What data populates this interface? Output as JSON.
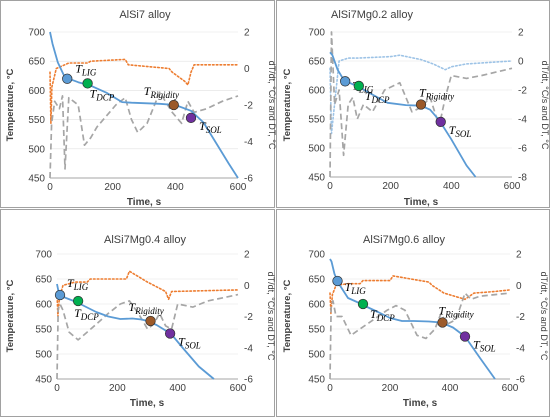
{
  "chart_data": [
    {
      "type": "line",
      "title": "AlSi7 alloy",
      "xlabel": "Time, s",
      "ylabel": "Temperature, °C",
      "ylabel2": "dT/dt, °C/s and DT, °C",
      "xlim": [
        0,
        600
      ],
      "ylim": [
        450,
        700
      ],
      "y2lim": [
        -6,
        2
      ],
      "xticks": [
        0,
        200,
        400,
        600
      ],
      "yticks": [
        450,
        500,
        550,
        600,
        650,
        700
      ],
      "y2ticks": [
        -6,
        -4,
        -2,
        0,
        2
      ],
      "grid": false,
      "series": [
        {
          "role": "temperature",
          "axis": "left",
          "color": "#5b9bd5",
          "style": "solid",
          "x": [
            0,
            8,
            25,
            45,
            60,
            90,
            130,
            180,
            230,
            260,
            300,
            350,
            400,
            450,
            490,
            530,
            570,
            600
          ],
          "y": [
            700,
            680,
            648,
            625,
            620,
            614,
            608,
            596,
            580,
            579,
            578,
            577,
            575,
            565,
            545,
            510,
            475,
            450
          ]
        },
        {
          "role": "dT/dt",
          "axis": "right",
          "color": "#ed7d31",
          "style": "dotted",
          "x": [
            0,
            3,
            6,
            20,
            60,
            120,
            130,
            240,
            250,
            380,
            390,
            430,
            440,
            450,
            460,
            600
          ],
          "y": [
            -0.2,
            -3.0,
            -1.0,
            0.0,
            0.3,
            0.3,
            0.4,
            0.5,
            0.2,
            0.0,
            -0.2,
            -0.7,
            -0.9,
            -0.2,
            0.2,
            0.2
          ]
        },
        {
          "role": "DT",
          "axis": "right",
          "color": "#a6a6a6",
          "style": "dashed",
          "x": [
            0,
            5,
            15,
            30,
            40,
            48,
            60,
            75,
            90,
            110,
            130,
            150,
            180,
            210,
            240,
            260,
            280,
            310,
            350,
            390,
            420,
            440,
            460,
            500,
            550,
            600
          ],
          "y": [
            -6.0,
            -3.0,
            -1.8,
            -2.2,
            -1.5,
            -5.5,
            -1.6,
            -1.8,
            -2.0,
            -4.2,
            -3.8,
            -3.2,
            -2.6,
            -2.0,
            -1.6,
            -2.8,
            -3.5,
            -3.0,
            -1.3,
            -2.4,
            -3.0,
            -1.8,
            -2.4,
            -2.2,
            -1.8,
            -1.5
          ]
        }
      ],
      "markers": [
        {
          "label": "T",
          "sub": "LIG",
          "x": 55,
          "y": 620,
          "color": "#5b9bd5"
        },
        {
          "label": "T",
          "sub": "DCP",
          "x": 120,
          "y": 612,
          "color": "#00b050"
        },
        {
          "label": "T",
          "sub": "Rigidity",
          "x": 395,
          "y": 575,
          "color": "#9c5a2a"
        },
        {
          "label": "T",
          "sub": "SOL",
          "x": 450,
          "y": 553,
          "color": "#7030a0"
        }
      ]
    },
    {
      "type": "line",
      "title": "AlSi7Mg0.2 alloy",
      "xlabel": "Time, s",
      "ylabel": "Temperature, °C",
      "ylabel2": "dT/dt, °C/s and DT, °C",
      "xlim": [
        0,
        600
      ],
      "ylim": [
        450,
        700
      ],
      "y2lim": [
        -8,
        2
      ],
      "xticks": [
        0,
        200,
        400,
        600
      ],
      "yticks": [
        450,
        500,
        550,
        600,
        650,
        700
      ],
      "y2ticks": [
        -8,
        -6,
        -4,
        -2,
        0,
        2
      ],
      "grid": false,
      "series": [
        {
          "role": "temperature",
          "axis": "left",
          "color": "#5b9bd5",
          "style": "solid",
          "x": [
            0,
            8,
            25,
            45,
            70,
            100,
            140,
            190,
            250,
            300,
            330,
            360,
            400,
            450,
            480
          ],
          "y": [
            665,
            660,
            635,
            618,
            611,
            604,
            592,
            578,
            574,
            573,
            566,
            548,
            515,
            470,
            450
          ]
        },
        {
          "role": "dT/dt",
          "axis": "right",
          "color": "#9dc3e6",
          "style": "dotted",
          "x": [
            0,
            5,
            30,
            60,
            90,
            200,
            230,
            300,
            340,
            380,
            400,
            450,
            600
          ],
          "y": [
            -0.5,
            -5.0,
            0.0,
            0.2,
            0.2,
            0.3,
            0.4,
            0.1,
            -0.2,
            -0.6,
            -0.4,
            -0.2,
            0.0
          ]
        },
        {
          "role": "DT",
          "axis": "right",
          "color": "#a6a6a6",
          "style": "dashed",
          "x": [
            0,
            5,
            15,
            30,
            45,
            60,
            75,
            90,
            110,
            140,
            180,
            230,
            270,
            300,
            330,
            360,
            380,
            400,
            450,
            500,
            600
          ],
          "y": [
            -8.0,
            2.0,
            -3.0,
            -2.0,
            -6.5,
            -3.0,
            -2.5,
            -4.0,
            -3.0,
            -3.5,
            -2.0,
            -1.5,
            -3.5,
            -3.2,
            -2.5,
            -4.5,
            -2.5,
            -1.0,
            -1.2,
            -1.0,
            -0.5
          ]
        }
      ],
      "markers": [
        {
          "label": "T",
          "sub": "LIG",
          "x": 50,
          "y": 615,
          "color": "#5b9bd5"
        },
        {
          "label": "T",
          "sub": "DCP",
          "x": 95,
          "y": 607,
          "color": "#00b050"
        },
        {
          "label": "T",
          "sub": "Rigidity",
          "x": 300,
          "y": 575,
          "color": "#9c5a2a"
        },
        {
          "label": "T",
          "sub": "SOL",
          "x": 365,
          "y": 545,
          "color": "#7030a0"
        }
      ]
    },
    {
      "type": "line",
      "title": "AlSi7Mg0.4 alloy",
      "xlabel": "Time, s",
      "ylabel": "Temperature, °C",
      "ylabel2": "dT/dt, °C/s and DT, °C",
      "xlim": [
        0,
        600
      ],
      "ylim": [
        450,
        700
      ],
      "y2lim": [
        -6,
        2
      ],
      "xticks": [
        0,
        200,
        400,
        600
      ],
      "yticks": [
        450,
        500,
        550,
        600,
        650,
        700
      ],
      "y2ticks": [
        -6,
        -4,
        -2,
        0,
        2
      ],
      "grid": false,
      "series": [
        {
          "role": "temperature",
          "axis": "left",
          "color": "#5b9bd5",
          "style": "solid",
          "x": [
            0,
            5,
            10,
            30,
            60,
            90,
            130,
            170,
            210,
            250,
            280,
            300,
            330,
            360,
            380,
            420,
            470,
            520
          ],
          "y": [
            640,
            625,
            617,
            612,
            605,
            596,
            584,
            575,
            570,
            571,
            569,
            566,
            558,
            547,
            539,
            510,
            475,
            450
          ]
        },
        {
          "role": "dT/dt",
          "axis": "right",
          "color": "#ed7d31",
          "style": "dotted",
          "x": [
            0,
            3,
            8,
            20,
            60,
            100,
            110,
            230,
            240,
            300,
            330,
            360,
            370,
            380,
            600
          ],
          "y": [
            -0.5,
            -2.0,
            -0.8,
            0.0,
            0.2,
            0.2,
            0.4,
            0.4,
            0.9,
            0.2,
            -0.1,
            -0.4,
            -0.9,
            -0.4,
            -0.3
          ]
        },
        {
          "role": "DT",
          "axis": "right",
          "color": "#a6a6a6",
          "style": "dashed",
          "x": [
            0,
            4,
            10,
            20,
            40,
            70,
            100,
            130,
            170,
            210,
            240,
            270,
            300,
            320,
            340,
            360,
            380,
            400,
            450,
            500,
            550,
            600
          ],
          "y": [
            -6.0,
            -1.5,
            -1.2,
            -1.6,
            -3.0,
            -3.5,
            -3.0,
            -2.5,
            -1.8,
            -1.2,
            -1.0,
            -1.8,
            -2.8,
            -2.5,
            -1.8,
            -2.6,
            -2.8,
            -1.2,
            -1.4,
            -1.0,
            -0.8,
            -0.6
          ]
        }
      ],
      "markers": [
        {
          "label": "T",
          "sub": "LIG",
          "x": 10,
          "y": 618,
          "color": "#5b9bd5"
        },
        {
          "label": "T",
          "sub": "DCP",
          "x": 70,
          "y": 606,
          "color": "#00b050"
        },
        {
          "label": "T",
          "sub": "Rigidity",
          "x": 310,
          "y": 566,
          "color": "#9c5a2a"
        },
        {
          "label": "T",
          "sub": "SOL",
          "x": 375,
          "y": 541,
          "color": "#7030a0"
        }
      ]
    },
    {
      "type": "line",
      "title": "AlSi7Mg0.6 alloy",
      "xlabel": "Time, s",
      "ylabel": "Temperature, °C",
      "ylabel2": "dT/dt, °C/s and DT, °C",
      "xlim": [
        0,
        600
      ],
      "ylim": [
        450,
        700
      ],
      "y2lim": [
        -6,
        2
      ],
      "xticks": [
        0,
        200,
        400,
        600
      ],
      "yticks": [
        450,
        500,
        550,
        600,
        650,
        700
      ],
      "y2ticks": [
        -6,
        -4,
        -2,
        0,
        2
      ],
      "grid": false,
      "series": [
        {
          "role": "temperature",
          "axis": "left",
          "color": "#5b9bd5",
          "style": "solid",
          "x": [
            0,
            5,
            15,
            30,
            60,
            90,
            120,
            160,
            200,
            240,
            280,
            330,
            370,
            410,
            450,
            500,
            550
          ],
          "y": [
            690,
            685,
            660,
            640,
            612,
            604,
            595,
            584,
            572,
            566,
            566,
            565,
            563,
            553,
            535,
            492,
            450
          ]
        },
        {
          "role": "dT/dt",
          "axis": "right",
          "color": "#ed7d31",
          "style": "dotted",
          "x": [
            0,
            3,
            8,
            20,
            60,
            100,
            110,
            200,
            210,
            330,
            340,
            380,
            450,
            480,
            550,
            600
          ],
          "y": [
            -0.5,
            -1.8,
            -0.6,
            0.0,
            0.1,
            0.1,
            0.3,
            0.3,
            0.6,
            0.2,
            0.0,
            -0.5,
            -0.9,
            -0.5,
            -0.4,
            -0.3
          ]
        },
        {
          "role": "DT",
          "axis": "right",
          "color": "#a6a6a6",
          "style": "dashed",
          "x": [
            0,
            4,
            10,
            20,
            40,
            70,
            100,
            130,
            160,
            190,
            220,
            250,
            290,
            320,
            350,
            370,
            390,
            420,
            450,
            470,
            500,
            550,
            600
          ],
          "y": [
            -6.0,
            -1.2,
            -1.0,
            -2.0,
            -2.0,
            -3.2,
            -2.8,
            -2.4,
            -2.0,
            -1.6,
            -1.3,
            -1.6,
            -3.2,
            -3.4,
            -2.8,
            -1.8,
            -2.5,
            -2.2,
            -0.5,
            -0.9,
            -0.7,
            -0.6,
            -0.5
          ]
        }
      ],
      "markers": [
        {
          "label": "T",
          "sub": "LIG",
          "x": 25,
          "y": 646,
          "color": "#5b9bd5"
        },
        {
          "label": "T",
          "sub": "DCP",
          "x": 110,
          "y": 600,
          "color": "#00b050"
        },
        {
          "label": "T",
          "sub": "Rigidity",
          "x": 375,
          "y": 563,
          "color": "#9c5a2a"
        },
        {
          "label": "T",
          "sub": "SOL",
          "x": 450,
          "y": 535,
          "color": "#7030a0"
        }
      ]
    }
  ]
}
